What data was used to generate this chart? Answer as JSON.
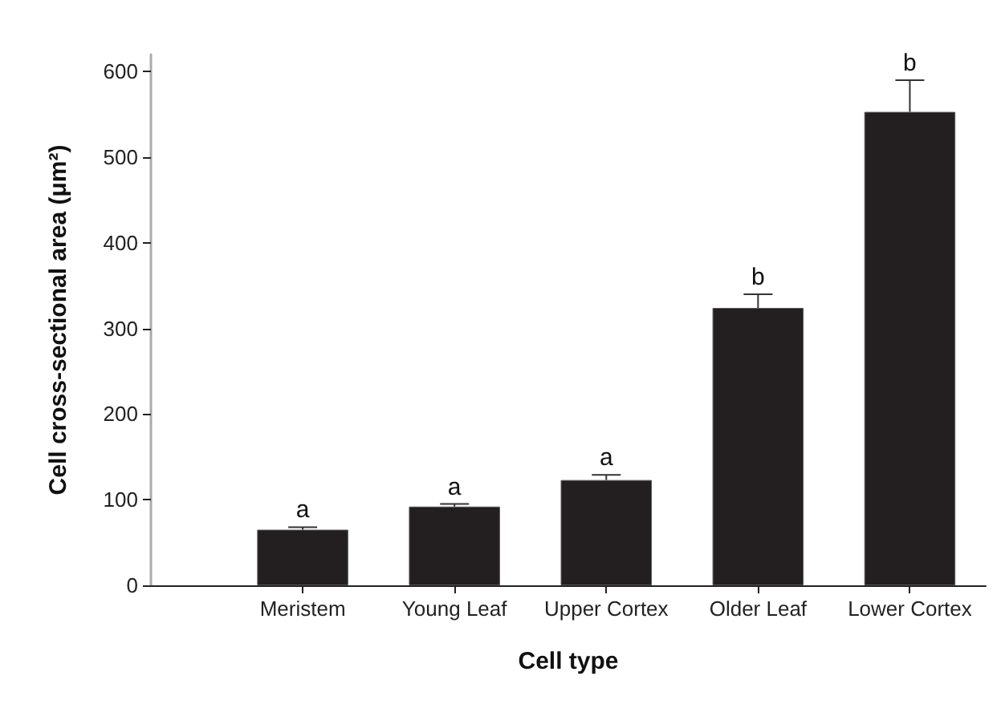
{
  "chart_data": {
    "type": "bar",
    "xlabel": "Cell type",
    "ylabel": "Cell cross-sectional area (μm²)",
    "categories": [
      "Meristem",
      "Young Leaf",
      "Upper Cortex",
      "Older Leaf",
      "Lower Cortex"
    ],
    "values": [
      65,
      92,
      123,
      324,
      553
    ],
    "errors": [
      3,
      3,
      6,
      16,
      37
    ],
    "color": "#231f20",
    "ylim": [
      0,
      620
    ],
    "yticks": [
      0,
      100,
      200,
      300,
      400,
      500,
      600
    ],
    "annotations": [
      {
        "text": "a",
        "x": "Meristem",
        "y": 68
      },
      {
        "text": "a",
        "x": "Young Leaf",
        "y": 95
      },
      {
        "text": "a",
        "x": "Upper Cortex",
        "y": 129
      },
      {
        "text": "b",
        "x": "Older Leaf",
        "y": 340
      },
      {
        "text": "b",
        "x": "Lower Cortex",
        "y": 590
      }
    ]
  }
}
